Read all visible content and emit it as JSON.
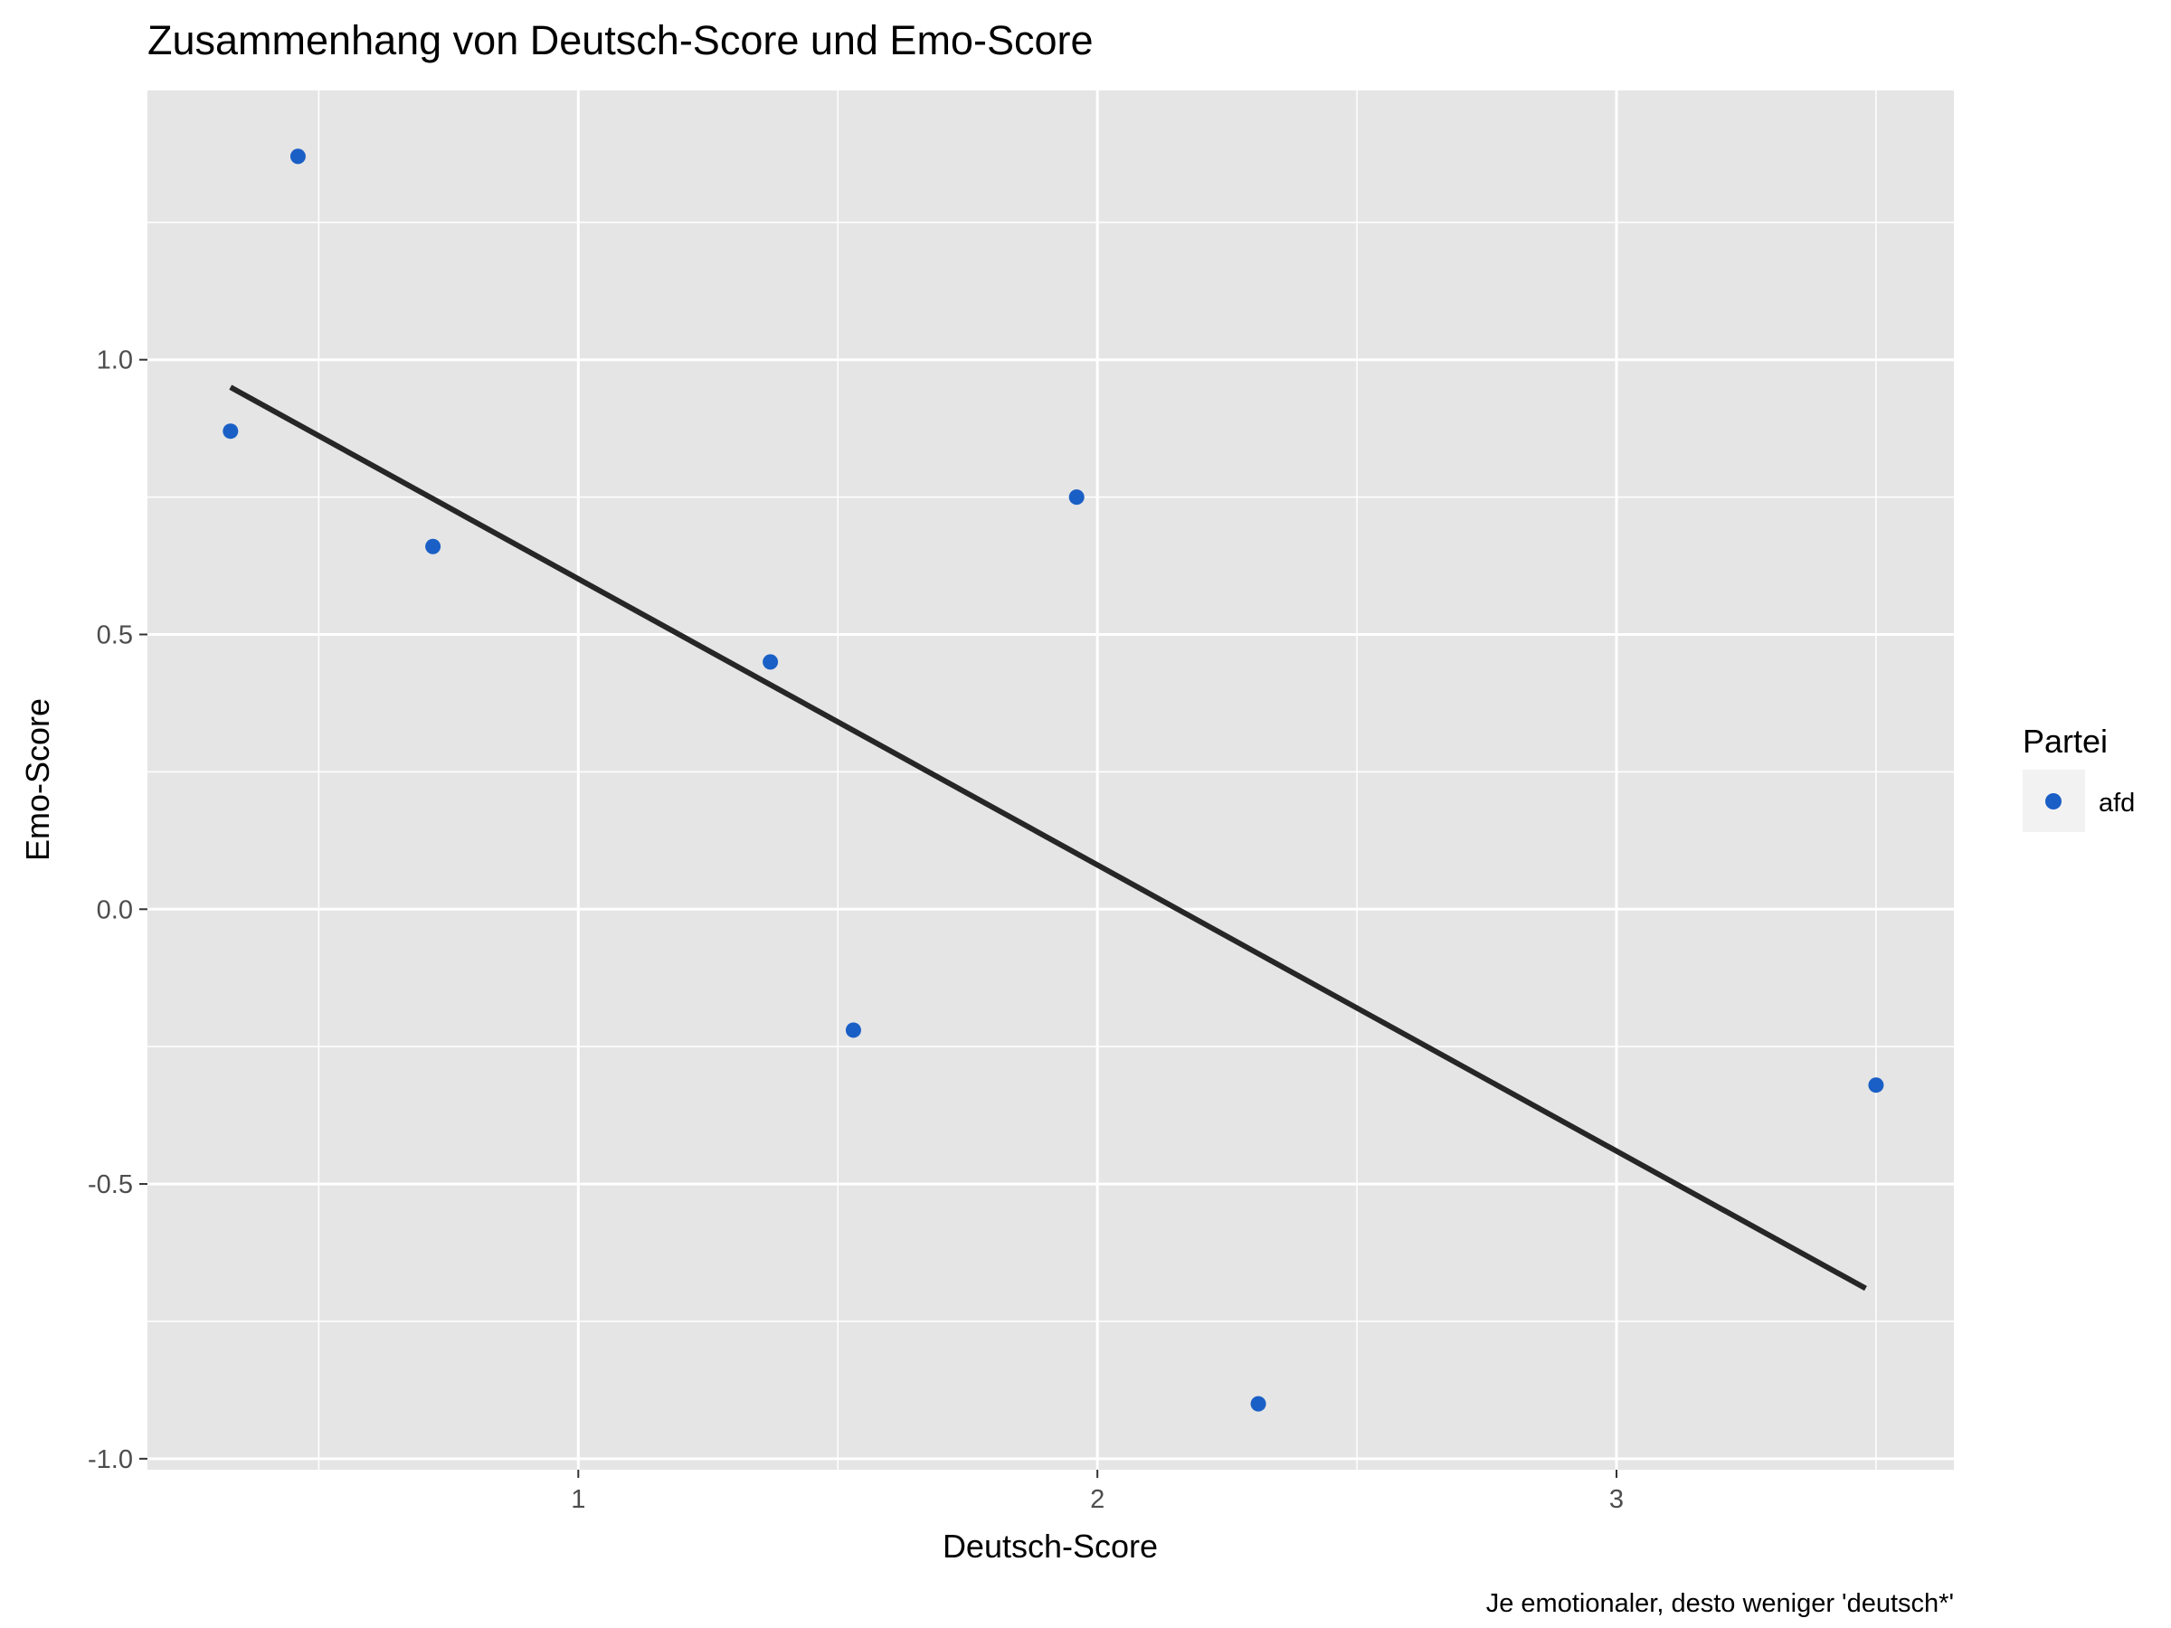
{
  "chart_data": {
    "type": "scatter",
    "title": "Zusammenhang von Deutsch-Score und Emo-Score",
    "xlabel": "Deutsch-Score",
    "ylabel": "Emo-Score",
    "caption": "Je emotionaler, desto weniger 'deutsch*'",
    "xlim": [
      0.17,
      3.65
    ],
    "ylim": [
      -1.02,
      1.49
    ],
    "x_ticks": [
      1,
      2,
      3
    ],
    "x_tick_labels": [
      "1",
      "2",
      "3"
    ],
    "x_minor_ticks": [
      0.5,
      1.5,
      2.5,
      3.5
    ],
    "y_ticks": [
      -1.0,
      -0.5,
      0.0,
      0.5,
      1.0
    ],
    "y_tick_labels": [
      "-1.0",
      "-0.5",
      "0.0",
      "0.5",
      "1.0"
    ],
    "y_minor_ticks": [
      -0.75,
      -0.25,
      0.25,
      0.75,
      1.25
    ],
    "grid": true,
    "legend": {
      "title": "Partei",
      "position": "right",
      "entries": [
        {
          "label": "afd",
          "color": "#1a5fc6"
        }
      ]
    },
    "series": [
      {
        "name": "afd",
        "color": "#1a5fc6",
        "points": [
          {
            "x": 0.33,
            "y": 0.87
          },
          {
            "x": 0.46,
            "y": 1.37
          },
          {
            "x": 0.72,
            "y": 0.66
          },
          {
            "x": 1.37,
            "y": 0.45
          },
          {
            "x": 1.53,
            "y": -0.22
          },
          {
            "x": 1.96,
            "y": 0.75
          },
          {
            "x": 2.31,
            "y": -0.9
          },
          {
            "x": 3.5,
            "y": -0.32
          }
        ]
      }
    ],
    "trend_line": {
      "color": "#262626",
      "points": [
        {
          "x": 0.33,
          "y": 0.95
        },
        {
          "x": 3.48,
          "y": -0.69
        }
      ]
    },
    "colors": {
      "panel_background": "#e5e5e5",
      "grid": "#ffffff",
      "point": "#1a5fc6",
      "line": "#262626"
    }
  }
}
